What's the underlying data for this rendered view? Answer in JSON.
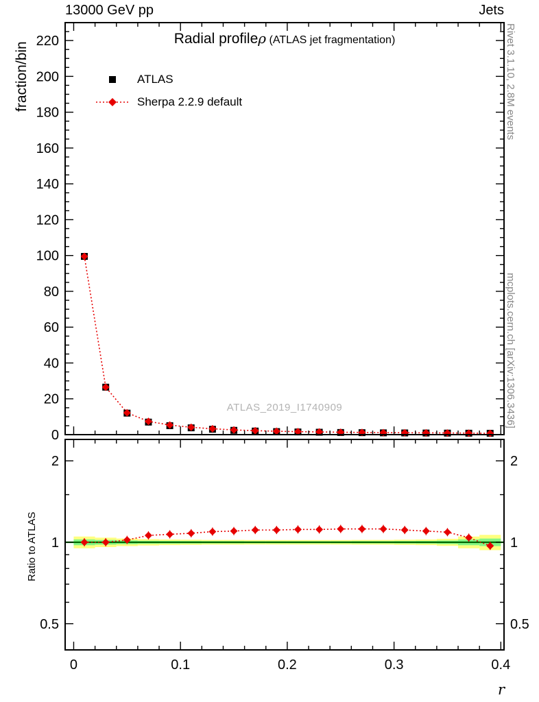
{
  "header": {
    "left": "13000 GeV pp",
    "right": "Jets"
  },
  "title": {
    "main": "Radial profile",
    "symbol": "ρ",
    "suffix": "(ATLAS jet fragmentation)"
  },
  "legend": {
    "items": [
      {
        "label": "ATLAS",
        "marker": "black-square"
      },
      {
        "label": "Sherpa 2.2.9 default",
        "marker": "red-diamond-dotted"
      }
    ]
  },
  "watermark": "ATLAS_2019_I1740909",
  "side_notes": {
    "top": "Rivet 3.1.10,  2.8M events",
    "bottom": "mcplots.cern.ch [arXiv:1306.3436]"
  },
  "colors": {
    "red": "#e60000",
    "black": "#000000",
    "band_yellow": "#ffff80",
    "band_green": "#85f585",
    "ref_line": "#00a000",
    "watermark_gray": "#b3b3b3",
    "note_gray": "#888888"
  },
  "axes": {
    "x": {
      "label": "r",
      "lim": [
        -0.008,
        0.403
      ],
      "major": [
        0,
        0.1,
        0.2,
        0.3,
        0.4
      ],
      "major_labels": [
        "0",
        "0.1",
        "0.2",
        "0.3",
        "0.4"
      ],
      "minor_step": 0.02
    },
    "y_main": {
      "label": "fraction/bin",
      "lim": [
        0,
        230
      ],
      "major_step": 20,
      "minor_step": 5
    },
    "y_ratio": {
      "label": "Ratio to ATLAS",
      "lim": [
        0.4,
        2.4
      ],
      "scale": "log",
      "major": [
        0.5,
        1,
        2
      ],
      "major_labels": [
        "0.5",
        "1",
        "2"
      ],
      "minor": [
        0.6,
        0.7,
        0.8,
        0.9,
        1.5
      ]
    }
  },
  "chart_data": [
    {
      "type": "line",
      "panel": "main",
      "title": "Radial profile ρ (ATLAS jet fragmentation)",
      "xlabel": "r",
      "ylabel": "fraction/bin",
      "xlim": [
        -0.008,
        0.403
      ],
      "ylim": [
        0,
        230
      ],
      "x": [
        0.01,
        0.03,
        0.05,
        0.07,
        0.09,
        0.11,
        0.13,
        0.15,
        0.17,
        0.19,
        0.21,
        0.23,
        0.25,
        0.27,
        0.29,
        0.31,
        0.33,
        0.35,
        0.37,
        0.39
      ],
      "series": [
        {
          "name": "ATLAS",
          "marker": "square",
          "color": "#000000",
          "values": [
            99.5,
            26.5,
            12,
            7,
            5,
            3.8,
            3.0,
            2.4,
            2.0,
            1.7,
            1.5,
            1.35,
            1.2,
            1.1,
            1.0,
            0.95,
            0.9,
            0.85,
            0.8,
            0.75
          ]
        },
        {
          "name": "Sherpa 2.2.9 default",
          "marker": "diamond",
          "color": "#e60000",
          "linestyle": "dotted",
          "values": [
            99.5,
            26.5,
            12.2,
            7.4,
            5.35,
            4.1,
            3.28,
            2.64,
            2.22,
            1.89,
            1.67,
            1.51,
            1.34,
            1.23,
            1.12,
            1.05,
            0.99,
            0.93,
            0.83,
            0.73
          ]
        }
      ],
      "legend_position": "upper-left",
      "grid": false
    },
    {
      "type": "line",
      "panel": "ratio",
      "ylabel": "Ratio to ATLAS",
      "yscale": "log",
      "ylim": [
        0.4,
        2.4
      ],
      "bin_half_width": 0.01,
      "x": [
        0.01,
        0.03,
        0.05,
        0.07,
        0.09,
        0.11,
        0.13,
        0.15,
        0.17,
        0.19,
        0.21,
        0.23,
        0.25,
        0.27,
        0.29,
        0.31,
        0.33,
        0.35,
        0.37,
        0.39
      ],
      "series": [
        {
          "name": "Sherpa 2.2.9 default / ATLAS",
          "marker": "diamond",
          "color": "#e60000",
          "linestyle": "dotted",
          "values": [
            1.0,
            1.0,
            1.02,
            1.06,
            1.07,
            1.08,
            1.095,
            1.1,
            1.11,
            1.11,
            1.115,
            1.115,
            1.12,
            1.12,
            1.12,
            1.11,
            1.1,
            1.09,
            1.04,
            0.97
          ]
        }
      ],
      "bands": {
        "yellow_halfwidth": [
          0.05,
          0.04,
          0.032,
          0.027,
          0.024,
          0.022,
          0.02,
          0.02,
          0.019,
          0.019,
          0.019,
          0.019,
          0.019,
          0.02,
          0.02,
          0.022,
          0.024,
          0.03,
          0.05,
          0.065
        ],
        "green_halfwidth": [
          0.025,
          0.02,
          0.016,
          0.013,
          0.012,
          0.011,
          0.01,
          0.01,
          0.009,
          0.009,
          0.009,
          0.009,
          0.009,
          0.01,
          0.01,
          0.011,
          0.012,
          0.015,
          0.025,
          0.032
        ]
      },
      "reference_line": 1.0,
      "grid": false
    }
  ]
}
